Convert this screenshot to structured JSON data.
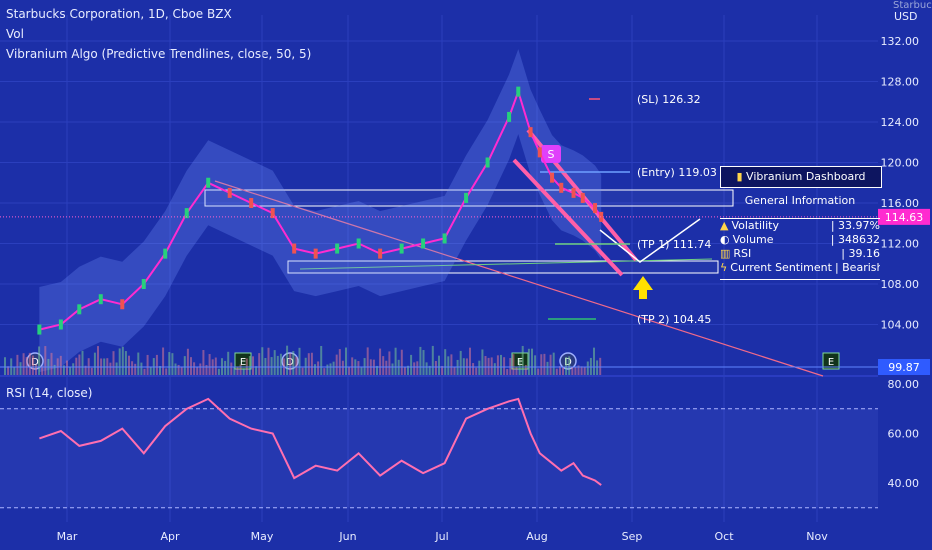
{
  "header": {
    "symbol_line": "Starbucks Corporation, 1D, Cboe BZX",
    "vol_label": "Vol",
    "indicator_label": "Vibranium Algo (Predictive Trendlines, close, 50, 5)",
    "currency": "USD",
    "currency_top": "Starbucks"
  },
  "rsi_label": "RSI (14, close)",
  "colors": {
    "background": "#1c2fa8",
    "price_line": "#ff2bd0",
    "rsi_line": "#ff6fb0",
    "up_candle": "#26d07c",
    "down_candle": "#ef5350",
    "box": "#ffffff",
    "arrow": "#ffe000"
  },
  "annotations": {
    "sl": "(SL) 126.32",
    "entry": "(Entry) 119.03",
    "tp1": "(TP 1) 111.74",
    "tp2": "(TP 2) 104.45",
    "signal": "S",
    "earnings": "E",
    "dividend": "D"
  },
  "dashboard": {
    "title": "Vibranium Dashboard",
    "section": "General Information",
    "rows": [
      {
        "icon": "warning-icon",
        "label": "Volatility",
        "value": "| 33.97%"
      },
      {
        "icon": "volume-icon",
        "label": "Volume",
        "value": "| 348632"
      },
      {
        "icon": "rsi-icon",
        "label": "RSI",
        "value": "| 39.16"
      },
      {
        "icon": "lightning-icon",
        "label": "Current Sentiment",
        "value": "| Bearish"
      }
    ]
  },
  "chart_data": [
    {
      "type": "line",
      "title": "Starbucks Corporation, 1D, Cboe BZX",
      "xlabel": "",
      "ylabel": "USD",
      "x_ticks": [
        "Mar",
        "Apr",
        "May",
        "Jun",
        "Jul",
        "Aug",
        "Sep",
        "Oct",
        "Nov"
      ],
      "y_ticks": [
        104.0,
        108.0,
        112.0,
        116.0,
        120.0,
        124.0,
        128.0,
        132.0
      ],
      "ylim": [
        99.0,
        136.0
      ],
      "price_labels": {
        "last": 114.63,
        "low": 99.87
      },
      "series": [
        {
          "name": "",
          "x": [
            "Feb 20",
            "Feb 27",
            "Mar 5",
            "Mar 12",
            "Mar 19",
            "Mar 26",
            "Apr 2",
            "Apr 9",
            "Apr 16",
            "Apr 23",
            "Apr 30",
            "May 7",
            "May 14",
            "May 21",
            "May 28",
            "Jun 4",
            "Jun 11",
            "Jun 18",
            "Jun 25",
            "Jul 2",
            "Jul 9",
            "Jul 16",
            "Jul 23",
            "Jul 26",
            "Jul 30",
            "Aug 2",
            "Aug 6",
            "Aug 9",
            "Aug 13",
            "Aug 16",
            "Aug 20",
            "Aug 22"
          ],
          "values": [
            103.5,
            104.0,
            105.5,
            106.5,
            106.0,
            108.0,
            111.0,
            115.0,
            118.0,
            117.0,
            116.0,
            115.0,
            111.5,
            111.0,
            111.5,
            112.0,
            111.0,
            111.5,
            112.0,
            112.5,
            116.5,
            120.0,
            124.5,
            127.0,
            123.0,
            121.0,
            118.5,
            117.5,
            117.0,
            116.5,
            115.5,
            114.63
          ]
        }
      ]
    },
    {
      "type": "line",
      "title": "RSI (14, close)",
      "xlabel": "",
      "ylabel": "",
      "y_ticks": [
        40.0,
        60.0,
        80.0
      ],
      "ylim": [
        27.0,
        83.0
      ],
      "bands": [
        30.0,
        70.0
      ],
      "series": [
        {
          "name": "",
          "x": [
            "Feb 20",
            "Feb 27",
            "Mar 5",
            "Mar 12",
            "Mar 19",
            "Mar 26",
            "Apr 2",
            "Apr 9",
            "Apr 16",
            "Apr 23",
            "Apr 30",
            "May 7",
            "May 14",
            "May 21",
            "May 28",
            "Jun 4",
            "Jun 11",
            "Jun 18",
            "Jun 25",
            "Jul 2",
            "Jul 9",
            "Jul 16",
            "Jul 23",
            "Jul 26",
            "Jul 30",
            "Aug 2",
            "Aug 6",
            "Aug 9",
            "Aug 13",
            "Aug 16",
            "Aug 20",
            "Aug 22"
          ],
          "values": [
            58.0,
            61.0,
            55.0,
            57.0,
            62.0,
            52.0,
            63.0,
            70.0,
            74.0,
            66.0,
            62.0,
            60.0,
            42.0,
            47.0,
            45.0,
            52.0,
            43.0,
            49.0,
            44.0,
            48.0,
            66.0,
            70.0,
            73.0,
            74.0,
            60.0,
            52.0,
            48.0,
            45.0,
            48.0,
            43.0,
            41.0,
            39.16
          ]
        }
      ]
    }
  ]
}
